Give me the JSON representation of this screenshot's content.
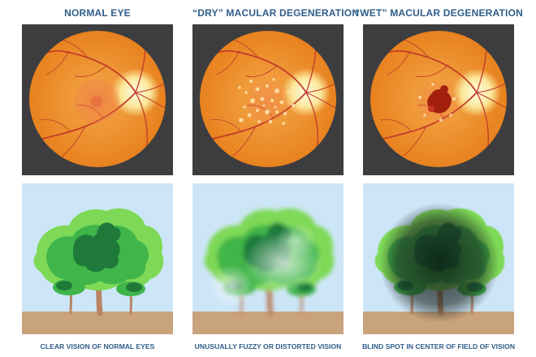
{
  "columns": [
    {
      "id": "normal",
      "title": "NORMAL EYE",
      "caption": "CLEAR VISION OF NORMAL EYES",
      "condition": "normal"
    },
    {
      "id": "dry",
      "title": "“DRY” MACULAR DEGENERATION",
      "caption": "UNUSUALLY FUZZY OR DISTORTED VISION",
      "condition": "dry"
    },
    {
      "id": "wet",
      "title": "“WET” MACULAR DEGENERATION",
      "caption": "BLIND SPOT IN CENTER OF FIELD OF VISION",
      "condition": "wet"
    }
  ],
  "colors": {
    "title_text": "#2f5d89",
    "fundus_background": "#3d3d3f",
    "retina_outer": "#e8821f",
    "retina_inner": "#f4a84a",
    "optic_disc": "#fbe79a",
    "vessel": "#c23a2a",
    "macula_normal": "#ee7a45",
    "drusen": "#fde0a8",
    "hemorrhage": "#a3200e",
    "sky": "#cde6f7",
    "ground": "#c9a37c",
    "trunk": "#b98563",
    "foliage_light": "#7ed957",
    "foliage_mid": "#3fb54a",
    "foliage_dark": "#1f7a3a"
  }
}
